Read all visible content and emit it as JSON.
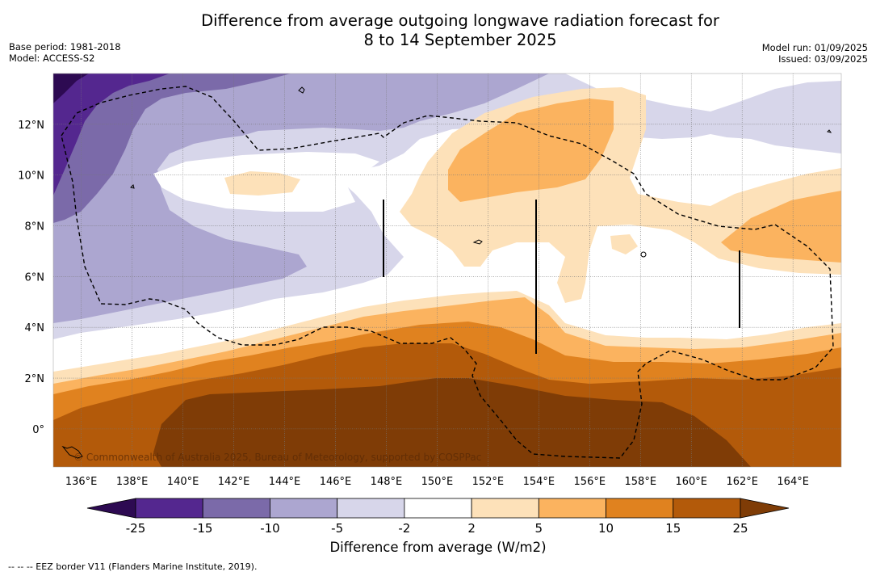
{
  "title_line1": "Difference from average outgoing longwave radiation forecast for",
  "title_line2": "8 to 14 September 2025",
  "base_period": "Base period: 1981-2018",
  "model": "Model: ACCESS-S2",
  "model_run": "Model run: 01/09/2025",
  "issued": "Issued: 03/09/2025",
  "copyright": "© Commonwealth of Australia 2025, Bureau of Meteorology, supported by COSPPac",
  "footnote": "--  --  -- EEZ border V11 (Flanders Marine Institute, 2019).",
  "map_data": {
    "lon_ticks": [
      "136°E",
      "138°E",
      "140°E",
      "142°E",
      "144°E",
      "146°E",
      "148°E",
      "150°E",
      "152°E",
      "154°E",
      "156°E",
      "158°E",
      "160°E",
      "162°E",
      "164°E"
    ],
    "lat_ticks": [
      "12°N",
      "10°N",
      "8°N",
      "6°N",
      "4°N",
      "2°N",
      "0°"
    ],
    "lon_range": [
      134.9,
      165.9
    ],
    "lat_range": [
      -1.5,
      14
    ],
    "grid": true
  },
  "colorbar": {
    "title": "Difference from average (W/m2)",
    "labels": [
      "-25",
      "-15",
      "-10",
      "-5",
      "-2",
      "2",
      "5",
      "10",
      "15",
      "25"
    ],
    "colors": [
      "#2d0a52",
      "#54278f",
      "#7b6aa9",
      "#aca6d0",
      "#d7d6ea",
      "#ffffff",
      "#fde1b9",
      "#fbb35f",
      "#e0821f",
      "#b35a0a",
      "#7f3c06"
    ]
  }
}
